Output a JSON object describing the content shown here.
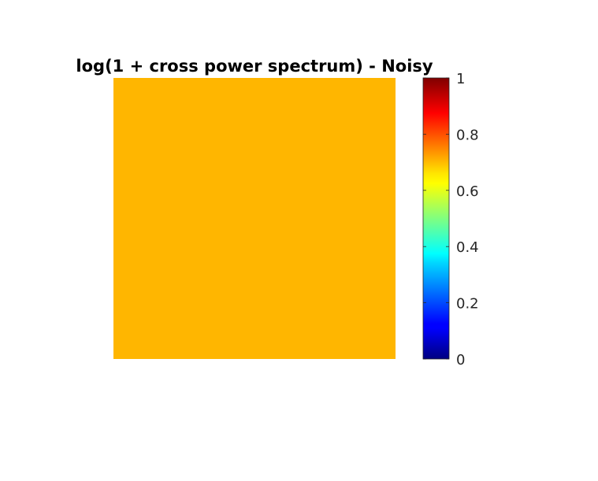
{
  "chart_data": {
    "type": "heatmap",
    "title": "log(1 + cross power spectrum) - Noisy",
    "xlabel": "",
    "ylabel": "",
    "grid": false,
    "value": 0.75,
    "colormap": "jet",
    "fill_color": "#FFB600",
    "colorbar": {
      "position": "right",
      "limits": [
        0,
        1
      ],
      "ticks": [
        0,
        0.2,
        0.4,
        0.6,
        0.8,
        1
      ],
      "tick_labels": [
        "0",
        "0.2",
        "0.4",
        "0.6",
        "0.8",
        "1"
      ]
    }
  }
}
